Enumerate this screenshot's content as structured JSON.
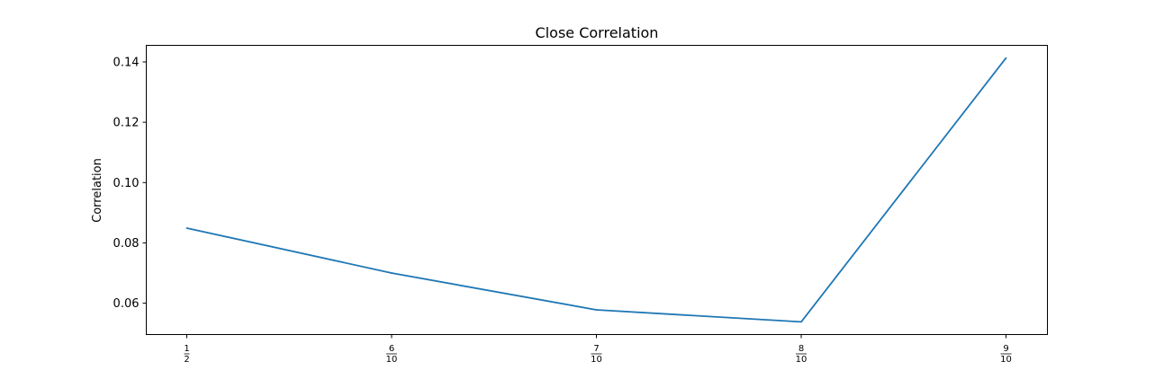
{
  "chart_data": {
    "type": "line",
    "title": "Close Correlation",
    "xlabel": "",
    "ylabel": "Correlation",
    "x": [
      {
        "numerator": "1",
        "denominator": "2"
      },
      {
        "numerator": "6",
        "denominator": "10"
      },
      {
        "numerator": "7",
        "denominator": "10"
      },
      {
        "numerator": "8",
        "denominator": "10"
      },
      {
        "numerator": "9",
        "denominator": "10"
      }
    ],
    "series": [
      {
        "values": [
          0.0849,
          0.07,
          0.0578,
          0.0538,
          0.1413
        ]
      }
    ],
    "yticks": [
      "0.06",
      "0.08",
      "0.10",
      "0.12",
      "0.14"
    ],
    "ytick_values": [
      0.06,
      0.08,
      0.1,
      0.12,
      0.14
    ],
    "ylim": [
      0.0496,
      0.1455
    ],
    "grid": false,
    "legend": "none",
    "colors": {
      "line": "#1f77b4",
      "axes": "#000000",
      "background": "#ffffff"
    }
  }
}
